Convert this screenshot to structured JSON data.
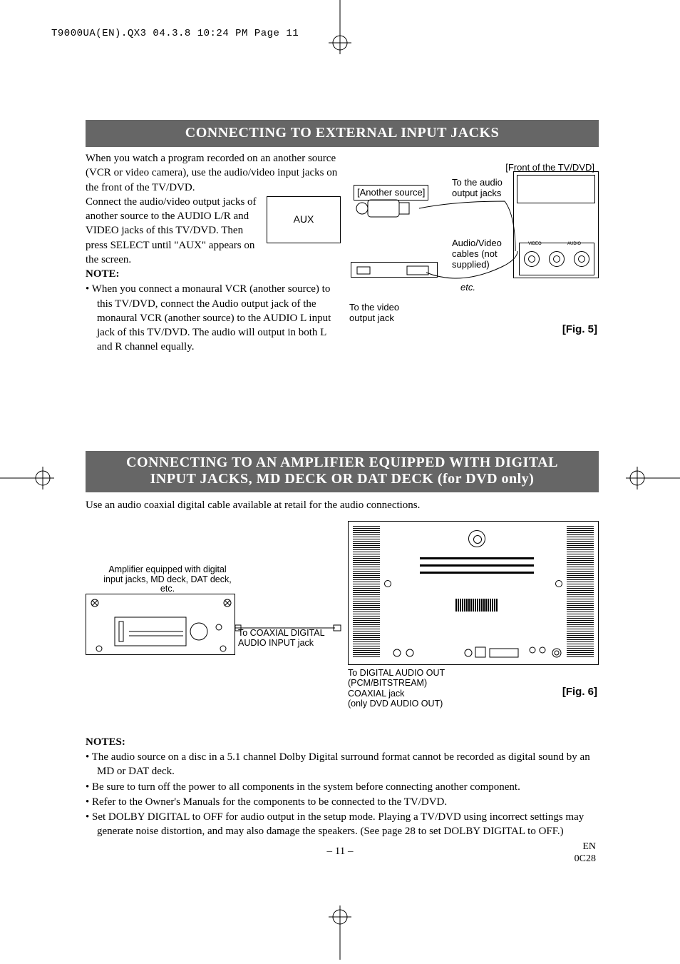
{
  "header_stamp": "T9000UA(EN).QX3  04.3.8  10:24 PM  Page 11",
  "colors": {
    "banner_bg": "#666666",
    "banner_fg": "#ffffff",
    "text": "#000000",
    "page_bg": "#ffffff"
  },
  "section1": {
    "title": "CONNECTING TO EXTERNAL INPUT JACKS",
    "para1": "When you watch a program recorded on an another source (VCR or video camera), use the audio/video input jacks on the front of the TV/DVD.",
    "para2": "Connect the audio/video output jacks of another source to the AUDIO L/R and VIDEO jacks of this TV/DVD. Then press SELECT until \"AUX\" appears on the screen.",
    "aux_box_text": "AUX",
    "note_label": "NOTE:",
    "note_bullets": [
      "When you connect a monaural VCR (another source) to this TV/DVD, connect the Audio output jack of the monaural VCR (another source) to the AUDIO L input jack of this TV/DVD. The audio will output in both L and R channel equally."
    ],
    "fig5": {
      "front_label": "[Front of the TV/DVD]",
      "another_source": "[Another source]",
      "audio_out": "To the audio output jacks",
      "av_cables": "Audio/Video cables (not supplied)",
      "etc": "etc.",
      "video_out": "To the video output jack",
      "jack_video": "VIDEO",
      "jack_audio": "AUDIO",
      "jack_lr": "L    R",
      "caption": "[Fig. 5]"
    }
  },
  "section2": {
    "title_line1": "CONNECTING TO AN AMPLIFIER EQUIPPED WITH DIGITAL",
    "title_line2": "INPUT JACKS, MD DECK OR DAT DECK (for DVD only)",
    "intro": "Use an audio coaxial digital cable available at retail for the audio connections.",
    "amp_label": "Amplifier equipped with digital input jacks, MD deck, DAT deck, etc.",
    "coax_in": "To COAXIAL DIGITAL AUDIO INPUT jack",
    "digital_out_l1": "To DIGITAL AUDIO OUT",
    "digital_out_l2": "(PCM/BITSTREAM)",
    "digital_out_l3": "COAXIAL jack",
    "digital_out_l4": "(only DVD AUDIO OUT)",
    "caption": "[Fig. 6]"
  },
  "notes": {
    "heading": "NOTES:",
    "items": [
      "The audio source on a disc in a 5.1 channel Dolby Digital surround format cannot be recorded as digital sound by an MD or DAT deck.",
      "Be sure to turn off the power to all components in the system before connecting another component.",
      "Refer to the Owner's Manuals for the components to be connected to the TV/DVD.",
      "Set DOLBY DIGITAL to OFF for audio output in the setup mode. Playing a TV/DVD using incorrect settings may generate noise distortion, and may also damage the speakers. (See page 28 to set DOLBY DIGITAL to OFF.)"
    ]
  },
  "page_number": "– 11 –",
  "footer": {
    "lang": "EN",
    "code": "0C28"
  }
}
